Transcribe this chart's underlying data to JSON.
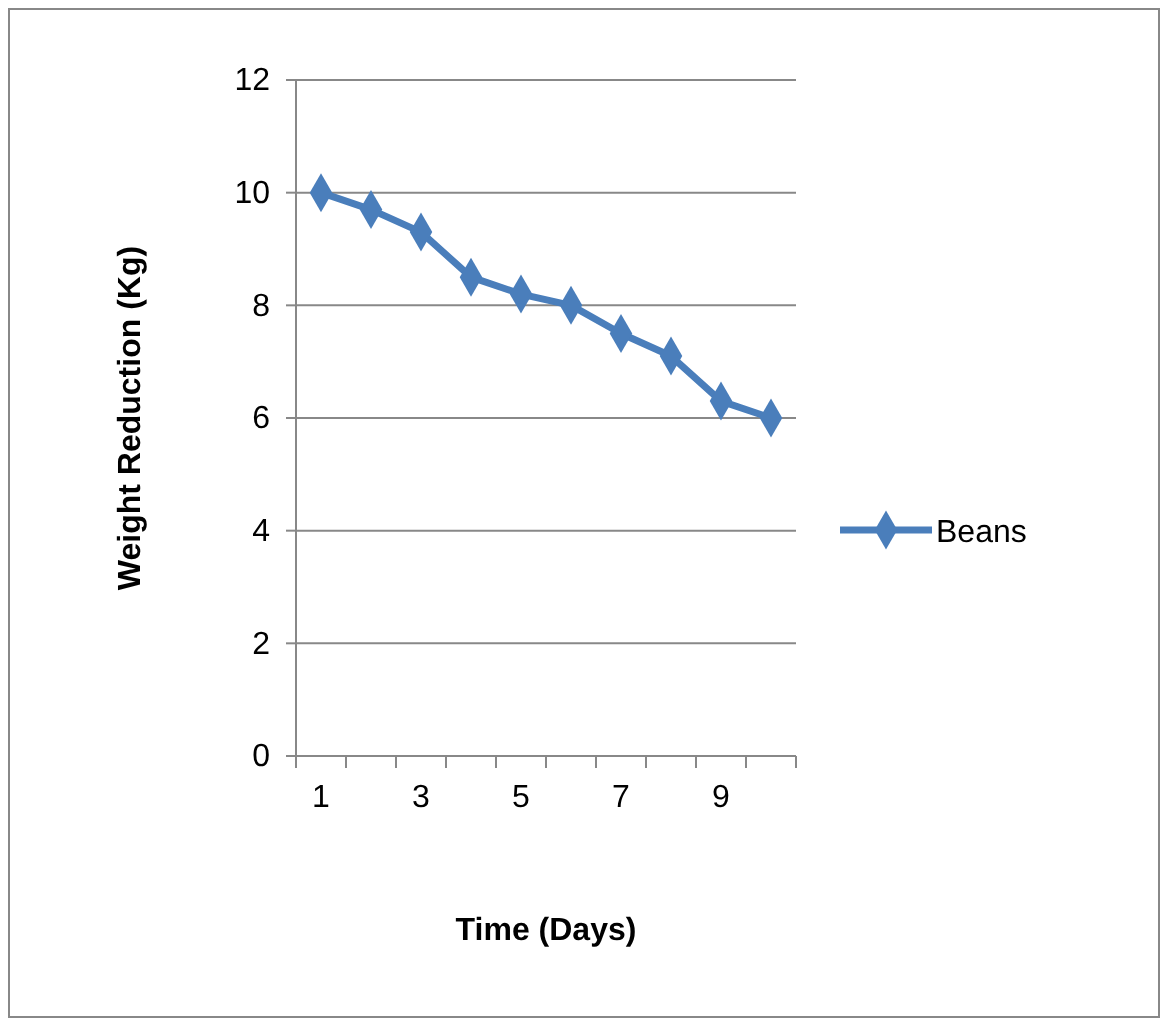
{
  "chart_data": {
    "type": "line",
    "xlabel": "Time (Days)",
    "ylabel": "Weight Reduction (Kg)",
    "categories": [
      "1",
      null,
      "3",
      null,
      "5",
      null,
      "7",
      null,
      "9",
      null
    ],
    "series": [
      {
        "name": "Beans",
        "color": "#4a7ebb",
        "values": [
          10,
          9.7,
          9.3,
          8.5,
          8.2,
          8.0,
          7.5,
          7.1,
          6.3,
          6.0
        ]
      }
    ],
    "ylim": [
      0,
      12
    ],
    "yticks": [
      0,
      2,
      4,
      6,
      8,
      10,
      12
    ],
    "grid": "y",
    "legend": "right",
    "marker": "diamond",
    "line_style": "solid"
  }
}
